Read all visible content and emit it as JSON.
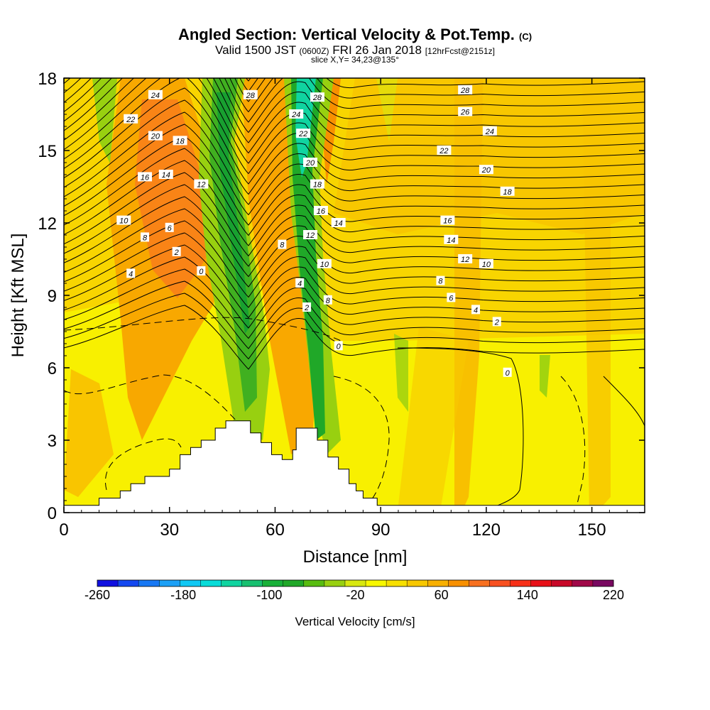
{
  "header": {
    "title": "Angled Section: Vertical Velocity & Pot.Temp.",
    "title_suffix": "(C)",
    "valid_prefix": "Valid 1500 JST",
    "valid_utc": "(0600Z)",
    "valid_date": "FRI 26 Jan 2018",
    "valid_fcst": "[12hrFcst@2151z]",
    "slice": "slice X,Y= 34,23@135°"
  },
  "chart_data": {
    "type": "heatmap",
    "xlabel": "Distance [nm]",
    "ylabel": "Height [Kft MSL]",
    "xlim": [
      0,
      165
    ],
    "ylim": [
      0,
      18
    ],
    "x_ticks": [
      0,
      30,
      60,
      90,
      120,
      150
    ],
    "y_ticks": [
      0,
      3,
      6,
      9,
      12,
      15,
      18
    ],
    "colorbar": {
      "label": "Vertical Velocity [cm/s]",
      "min": -260,
      "max": 220,
      "step": 20,
      "tick_labels": [
        "-260",
        "-180",
        "-100",
        "-20",
        "60",
        "140",
        "220"
      ],
      "colors": [
        "#1010e0",
        "#1448f0",
        "#1878f4",
        "#1ca0f6",
        "#10c8f4",
        "#08dcd8",
        "#10d4a0",
        "#18c070",
        "#18b038",
        "#20a828",
        "#58bc10",
        "#98d010",
        "#d8e810",
        "#f8f800",
        "#f8e000",
        "#f8c800",
        "#f8b000",
        "#f89000",
        "#f87020",
        "#f85020",
        "#f83018",
        "#e81018",
        "#c80828",
        "#a00848",
        "#780860"
      ]
    },
    "velocity_features": [
      {
        "label": "strong downdraft",
        "x_bottom": 50,
        "x_top": 39,
        "min_cms": -100
      },
      {
        "label": "strong downdraft",
        "x_bottom": 71,
        "x_top": 67,
        "min_cms": -160
      },
      {
        "label": "updraft",
        "x_bottom": 25,
        "x_top": 25,
        "max_cms": 60
      },
      {
        "label": "updraft",
        "x_bottom": 65,
        "x_top": 56,
        "max_cms": 60
      }
    ],
    "terrain": [
      [
        0,
        0.3
      ],
      [
        10,
        0.3
      ],
      [
        10,
        0.6
      ],
      [
        16,
        0.6
      ],
      [
        16,
        0.9
      ],
      [
        19,
        0.9
      ],
      [
        19,
        1.2
      ],
      [
        23,
        1.2
      ],
      [
        23,
        1.5
      ],
      [
        30,
        1.5
      ],
      [
        30,
        1.8
      ],
      [
        33,
        1.8
      ],
      [
        33,
        2.4
      ],
      [
        36,
        2.4
      ],
      [
        36,
        2.7
      ],
      [
        39,
        2.7
      ],
      [
        39,
        3.0
      ],
      [
        43,
        3.0
      ],
      [
        43,
        3.5
      ],
      [
        46,
        3.5
      ],
      [
        46,
        3.8
      ],
      [
        53,
        3.8
      ],
      [
        53,
        3.3
      ],
      [
        56,
        3.3
      ],
      [
        56,
        2.9
      ],
      [
        59,
        2.9
      ],
      [
        59,
        2.4
      ],
      [
        62,
        2.4
      ],
      [
        62,
        2.2
      ],
      [
        65,
        2.2
      ],
      [
        65,
        2.6
      ],
      [
        66,
        2.6
      ],
      [
        66,
        3.5
      ],
      [
        72,
        3.5
      ],
      [
        72,
        3.0
      ],
      [
        75,
        3.0
      ],
      [
        75,
        2.3
      ],
      [
        78,
        2.3
      ],
      [
        78,
        1.8
      ],
      [
        81,
        1.8
      ],
      [
        81,
        1.2
      ],
      [
        83,
        1.2
      ],
      [
        83,
        0.9
      ],
      [
        85,
        0.9
      ],
      [
        85,
        0.6
      ],
      [
        89,
        0.6
      ],
      [
        89,
        0.3
      ],
      [
        165,
        0.3
      ]
    ],
    "isentrope_labels": [
      {
        "text": "24",
        "x": 26,
        "y": 17.3
      },
      {
        "text": "22",
        "x": 19,
        "y": 16.3
      },
      {
        "text": "20",
        "x": 26,
        "y": 15.6
      },
      {
        "text": "18",
        "x": 33,
        "y": 15.4
      },
      {
        "text": "16",
        "x": 23,
        "y": 13.9
      },
      {
        "text": "14",
        "x": 29,
        "y": 14.0
      },
      {
        "text": "12",
        "x": 39,
        "y": 13.6
      },
      {
        "text": "10",
        "x": 17,
        "y": 12.1
      },
      {
        "text": "8",
        "x": 23,
        "y": 11.4
      },
      {
        "text": "6",
        "x": 30,
        "y": 11.8
      },
      {
        "text": "2",
        "x": 32,
        "y": 10.8
      },
      {
        "text": "4",
        "x": 19,
        "y": 9.9
      },
      {
        "text": "0",
        "x": 39,
        "y": 10.0
      },
      {
        "text": "28",
        "x": 53,
        "y": 17.3
      },
      {
        "text": "28",
        "x": 72,
        "y": 17.2
      },
      {
        "text": "24",
        "x": 66,
        "y": 16.5
      },
      {
        "text": "22",
        "x": 68,
        "y": 15.7
      },
      {
        "text": "20",
        "x": 70,
        "y": 14.5
      },
      {
        "text": "18",
        "x": 72,
        "y": 13.6
      },
      {
        "text": "16",
        "x": 73,
        "y": 12.5
      },
      {
        "text": "14",
        "x": 78,
        "y": 12.0
      },
      {
        "text": "12",
        "x": 70,
        "y": 11.5
      },
      {
        "text": "8",
        "x": 62,
        "y": 11.1
      },
      {
        "text": "10",
        "x": 74,
        "y": 10.3
      },
      {
        "text": "4",
        "x": 67,
        "y": 9.5
      },
      {
        "text": "8",
        "x": 75,
        "y": 8.8
      },
      {
        "text": "2",
        "x": 69,
        "y": 8.5
      },
      {
        "text": "0",
        "x": 78,
        "y": 6.9
      },
      {
        "text": "28",
        "x": 114,
        "y": 17.5
      },
      {
        "text": "26",
        "x": 114,
        "y": 16.6
      },
      {
        "text": "24",
        "x": 121,
        "y": 15.8
      },
      {
        "text": "22",
        "x": 108,
        "y": 15.0
      },
      {
        "text": "20",
        "x": 120,
        "y": 14.2
      },
      {
        "text": "18",
        "x": 126,
        "y": 13.3
      },
      {
        "text": "16",
        "x": 109,
        "y": 12.1
      },
      {
        "text": "14",
        "x": 110,
        "y": 11.3
      },
      {
        "text": "12",
        "x": 114,
        "y": 10.5
      },
      {
        "text": "10",
        "x": 120,
        "y": 10.3
      },
      {
        "text": "8",
        "x": 107,
        "y": 9.6
      },
      {
        "text": "6",
        "x": 110,
        "y": 8.9
      },
      {
        "text": "4",
        "x": 117,
        "y": 8.4
      },
      {
        "text": "2",
        "x": 123,
        "y": 7.9
      },
      {
        "text": "0",
        "x": 126,
        "y": 5.8
      }
    ]
  }
}
